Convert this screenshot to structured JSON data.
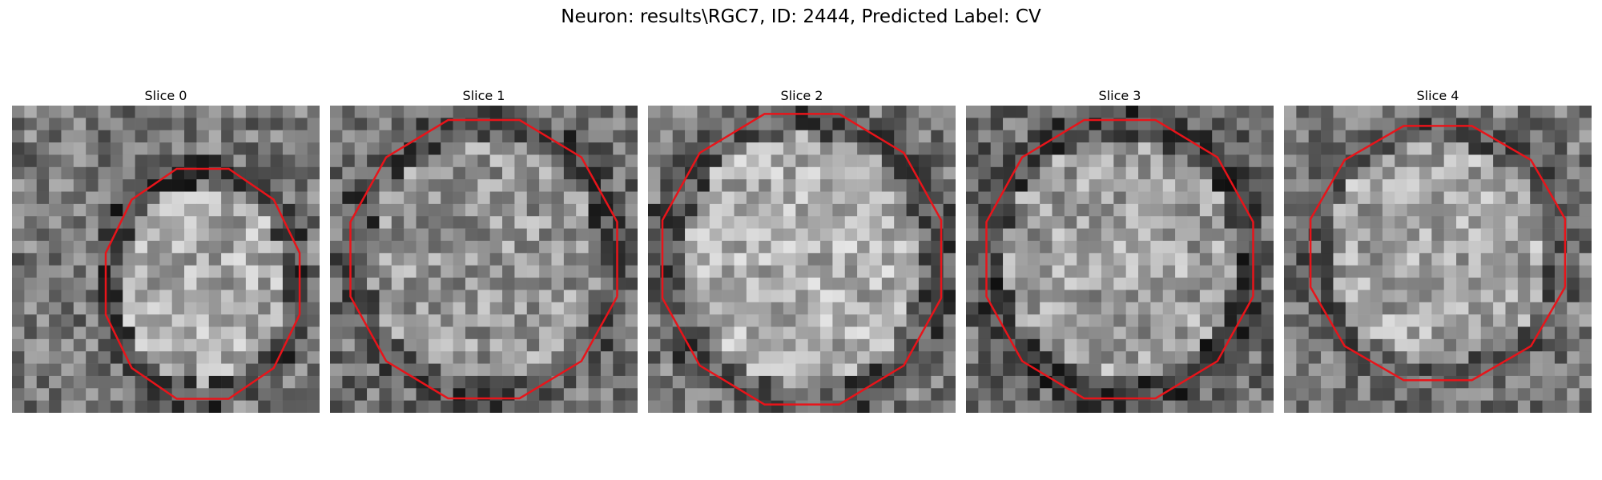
{
  "figure": {
    "title": "Neuron: results\\RGC7, ID: 2444, Predicted Label: CV"
  },
  "contour_color": "#e8141a",
  "panels": [
    {
      "title": "Slice 0"
    },
    {
      "title": "Slice 1"
    },
    {
      "title": "Slice 2"
    },
    {
      "title": "Slice 3"
    },
    {
      "title": "Slice 4"
    }
  ]
}
